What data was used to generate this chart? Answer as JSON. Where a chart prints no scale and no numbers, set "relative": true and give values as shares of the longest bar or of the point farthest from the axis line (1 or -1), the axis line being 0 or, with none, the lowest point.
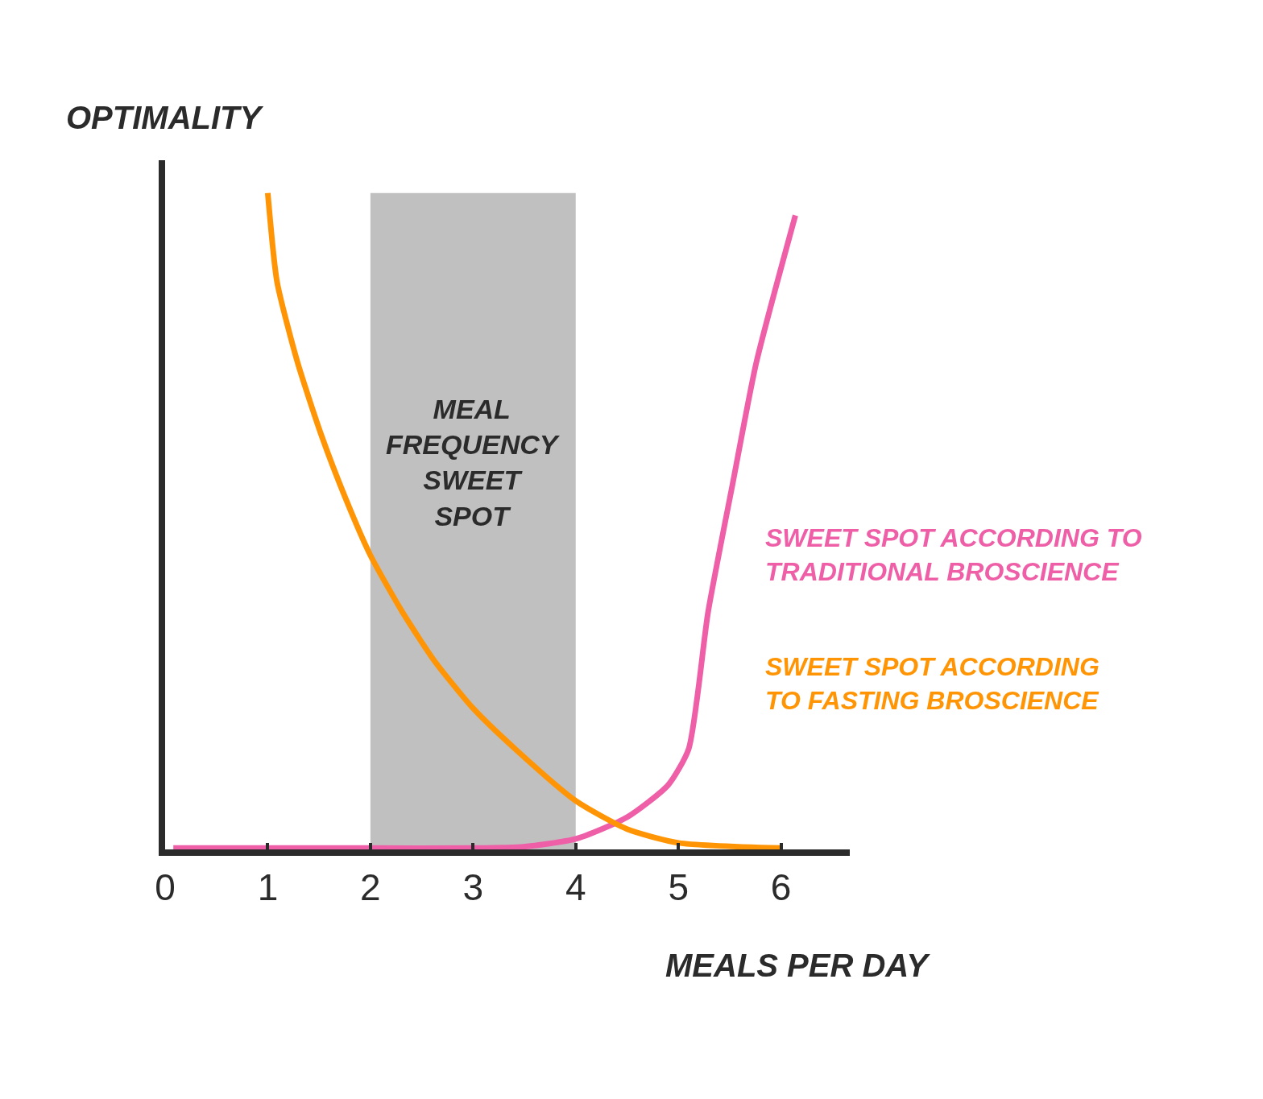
{
  "chart_data": {
    "type": "line",
    "relative": true,
    "xlabel": "MEALS PER DAY",
    "ylabel": "OPTIMALITY",
    "xlim": [
      0,
      6.67
    ],
    "xticks": [
      0,
      1,
      2,
      3,
      4,
      5,
      6
    ],
    "grid": false,
    "legend": false,
    "marker": "none",
    "line_style": "solid",
    "series": [
      {
        "name": "SWEET SPOT ACCORDING TO TRADITIONAL BROSCIENCE",
        "color": "#ee5fa7",
        "x": [
          0.08,
          1,
          2,
          3,
          3.49,
          4,
          4.5,
          4.9,
          5.1,
          5.29,
          5.53,
          5.76,
          6.14
        ],
        "values": [
          0.002,
          0.002,
          0.002,
          0.002,
          0.004,
          0.016,
          0.049,
          0.098,
          0.153,
          0.362,
          0.558,
          0.742,
          0.966
        ]
      },
      {
        "name": "SWEET SPOT ACCORDING TO FASTING BROSCIENCE",
        "color": "#ff9505",
        "x": [
          1,
          1.09,
          1.29,
          1.52,
          1.76,
          2,
          2.31,
          2.62,
          3,
          3.41,
          4,
          4.5,
          5,
          6
        ],
        "values": [
          1.0,
          0.865,
          0.742,
          0.632,
          0.534,
          0.448,
          0.362,
          0.288,
          0.215,
          0.153,
          0.074,
          0.031,
          0.01,
          0.002
        ]
      }
    ],
    "bands": [
      {
        "axis": "x",
        "from": 2,
        "to": 4,
        "label": "MEAL FREQUENCY SWEET SPOT",
        "color": "#c0c0c0"
      }
    ]
  }
}
